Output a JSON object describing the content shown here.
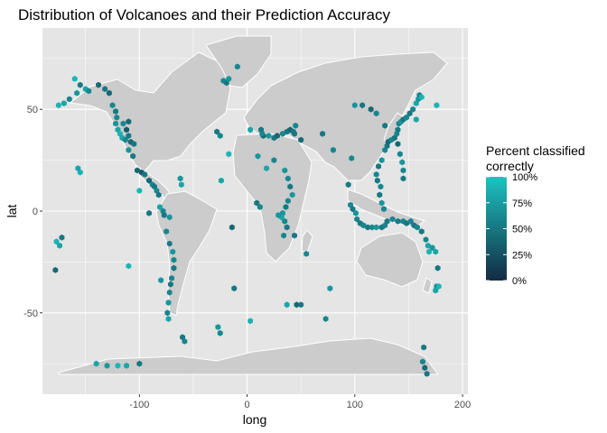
{
  "chart_data": {
    "type": "scatter",
    "title": "Distribution of Volcanoes and their Prediction Accuracy",
    "xlabel": "long",
    "ylabel": "lat",
    "xlim": [
      -190,
      205
    ],
    "ylim": [
      -90,
      90
    ],
    "x_ticks": [
      -100,
      0,
      100,
      200
    ],
    "y_ticks": [
      -50,
      0,
      50
    ],
    "x_tick_labels": [
      "-100",
      "0",
      "100",
      "200"
    ],
    "y_tick_labels": [
      "-50",
      "0",
      "50"
    ],
    "grid": true,
    "background_color": "#e5e5e5",
    "land_color": "#cccccc",
    "border_color": "#ffffff",
    "legend": {
      "title_lines": [
        "Percent classified",
        "correctly"
      ],
      "position": "right",
      "labels": [
        "100%",
        "75%",
        "50%",
        "25%",
        "0%"
      ],
      "values": [
        1.0,
        0.75,
        0.5,
        0.25,
        0.0
      ],
      "color_low": "#132b43",
      "color_high": "#1cc3c0"
    },
    "points": [
      {
        "x": -160,
        "y": 65,
        "v": 0.9
      },
      {
        "x": -155,
        "y": 62,
        "v": 0.5
      },
      {
        "x": -158,
        "y": 58,
        "v": 0.7
      },
      {
        "x": -165,
        "y": 55,
        "v": 0.6
      },
      {
        "x": -170,
        "y": 53,
        "v": 0.8
      },
      {
        "x": -175,
        "y": 52,
        "v": 0.9
      },
      {
        "x": -150,
        "y": 60,
        "v": 0.8
      },
      {
        "x": -147,
        "y": 59,
        "v": 0.6
      },
      {
        "x": -138,
        "y": 62,
        "v": 0.4
      },
      {
        "x": -132,
        "y": 60,
        "v": 0.5
      },
      {
        "x": -128,
        "y": 58,
        "v": 0.4
      },
      {
        "x": -125,
        "y": 52,
        "v": 0.6
      },
      {
        "x": -122,
        "y": 49,
        "v": 0.5
      },
      {
        "x": -121,
        "y": 46,
        "v": 0.6
      },
      {
        "x": -122,
        "y": 43,
        "v": 0.7
      },
      {
        "x": -120,
        "y": 40,
        "v": 0.8
      },
      {
        "x": -118,
        "y": 38,
        "v": 0.9
      },
      {
        "x": -116,
        "y": 36,
        "v": 0.8
      },
      {
        "x": -113,
        "y": 35,
        "v": 0.6
      },
      {
        "x": -110,
        "y": 37,
        "v": 0.5
      },
      {
        "x": -108,
        "y": 34,
        "v": 0.4
      },
      {
        "x": -112,
        "y": 40,
        "v": 0.3
      },
      {
        "x": -110,
        "y": 44,
        "v": 0.4
      },
      {
        "x": -115,
        "y": 43,
        "v": 0.6
      },
      {
        "x": -105,
        "y": 33,
        "v": 0.5
      },
      {
        "x": -110,
        "y": 30,
        "v": 0.7
      },
      {
        "x": -106,
        "y": 27,
        "v": 0.5
      },
      {
        "x": -102,
        "y": 20,
        "v": 0.4
      },
      {
        "x": -98,
        "y": 19,
        "v": 0.3
      },
      {
        "x": -95,
        "y": 18,
        "v": 0.5
      },
      {
        "x": -91,
        "y": 15,
        "v": 0.4
      },
      {
        "x": -88,
        "y": 13,
        "v": 0.6
      },
      {
        "x": -86,
        "y": 12,
        "v": 0.5
      },
      {
        "x": -84,
        "y": 10,
        "v": 0.6
      },
      {
        "x": -82,
        "y": 8,
        "v": 0.5
      },
      {
        "x": -100,
        "y": 10,
        "v": 0.9
      },
      {
        "x": -62,
        "y": 16,
        "v": 0.7
      },
      {
        "x": -61,
        "y": 13,
        "v": 0.8
      },
      {
        "x": -155,
        "y": 19,
        "v": 0.9
      },
      {
        "x": -157,
        "y": 21,
        "v": 0.8
      },
      {
        "x": -78,
        "y": 0,
        "v": 0.6
      },
      {
        "x": -77,
        "y": -2,
        "v": 0.5
      },
      {
        "x": -75,
        "y": -10,
        "v": 0.6
      },
      {
        "x": -72,
        "y": -16,
        "v": 0.5
      },
      {
        "x": -69,
        "y": -20,
        "v": 0.7
      },
      {
        "x": -68,
        "y": -24,
        "v": 0.6
      },
      {
        "x": -68,
        "y": -28,
        "v": 0.5
      },
      {
        "x": -70,
        "y": -33,
        "v": 0.6
      },
      {
        "x": -71,
        "y": -36,
        "v": 0.5
      },
      {
        "x": -72,
        "y": -40,
        "v": 0.6
      },
      {
        "x": -73,
        "y": -45,
        "v": 0.7
      },
      {
        "x": -74,
        "y": -50,
        "v": 0.6
      },
      {
        "x": -73,
        "y": -53,
        "v": 0.8
      },
      {
        "x": -80,
        "y": -34,
        "v": 0.7
      },
      {
        "x": -91,
        "y": -1,
        "v": 0.5
      },
      {
        "x": -72,
        "y": -3,
        "v": 0.7
      },
      {
        "x": -81,
        "y": 2,
        "v": 0.8
      },
      {
        "x": -60,
        "y": -62,
        "v": 0.5
      },
      {
        "x": -58,
        "y": -64,
        "v": 0.6
      },
      {
        "x": -27,
        "y": -57,
        "v": 0.7
      },
      {
        "x": -25,
        "y": -60,
        "v": 0.6
      },
      {
        "x": -12,
        "y": -38,
        "v": 0.5
      },
      {
        "x": -22,
        "y": 64,
        "v": 0.6
      },
      {
        "x": -19,
        "y": 63,
        "v": 0.5
      },
      {
        "x": -17,
        "y": 65,
        "v": 0.7
      },
      {
        "x": -9,
        "y": 71,
        "v": 0.6
      },
      {
        "x": -28,
        "y": 39,
        "v": 0.5
      },
      {
        "x": -25,
        "y": 37,
        "v": 0.6
      },
      {
        "x": -17,
        "y": 28,
        "v": 0.9
      },
      {
        "x": -24,
        "y": 15,
        "v": 0.8
      },
      {
        "x": -14,
        "y": -8,
        "v": 0.4
      },
      {
        "x": 3,
        "y": 40,
        "v": 0.8
      },
      {
        "x": 13,
        "y": 40,
        "v": 0.5
      },
      {
        "x": 15,
        "y": 37,
        "v": 0.4
      },
      {
        "x": 14,
        "y": 38,
        "v": 0.6
      },
      {
        "x": 20,
        "y": 37,
        "v": 0.7
      },
      {
        "x": 25,
        "y": 36,
        "v": 0.5
      },
      {
        "x": 28,
        "y": 37,
        "v": 0.4
      },
      {
        "x": 33,
        "y": 38,
        "v": 0.6
      },
      {
        "x": 37,
        "y": 39,
        "v": 0.5
      },
      {
        "x": 40,
        "y": 40,
        "v": 0.4
      },
      {
        "x": 43,
        "y": 39,
        "v": 0.5
      },
      {
        "x": 45,
        "y": 42,
        "v": 0.6
      },
      {
        "x": 44,
        "y": 38,
        "v": 0.5
      },
      {
        "x": 50,
        "y": 35,
        "v": 0.4
      },
      {
        "x": 10,
        "y": 27,
        "v": 0.7
      },
      {
        "x": 18,
        "y": 21,
        "v": 0.8
      },
      {
        "x": 25,
        "y": 25,
        "v": 0.6
      },
      {
        "x": 35,
        "y": 20,
        "v": 0.7
      },
      {
        "x": 38,
        "y": 16,
        "v": 0.6
      },
      {
        "x": 40,
        "y": 12,
        "v": 0.5
      },
      {
        "x": 42,
        "y": 8,
        "v": 0.7
      },
      {
        "x": 38,
        "y": 5,
        "v": 0.6
      },
      {
        "x": 36,
        "y": 2,
        "v": 0.5
      },
      {
        "x": 33,
        "y": -1,
        "v": 0.7
      },
      {
        "x": 35,
        "y": -5,
        "v": 0.6
      },
      {
        "x": 37,
        "y": -8,
        "v": 0.5
      },
      {
        "x": 32,
        "y": -3,
        "v": 0.8
      },
      {
        "x": 29,
        "y": -2,
        "v": 0.7
      },
      {
        "x": 34,
        "y": -12,
        "v": 0.6
      },
      {
        "x": 9,
        "y": 4,
        "v": 0.5
      },
      {
        "x": 12,
        "y": 2,
        "v": 0.6
      },
      {
        "x": 44,
        "y": -12,
        "v": 0.5
      },
      {
        "x": 55,
        "y": -21,
        "v": 0.6
      },
      {
        "x": 37,
        "y": -46,
        "v": 0.8
      },
      {
        "x": 46,
        "y": -46,
        "v": 0.4
      },
      {
        "x": 50,
        "y": -46,
        "v": 0.5
      },
      {
        "x": 73,
        "y": -53,
        "v": 0.6
      },
      {
        "x": 77,
        "y": -38,
        "v": 0.7
      },
      {
        "x": 3,
        "y": -54,
        "v": 0.9
      },
      {
        "x": 70,
        "y": 38,
        "v": 0.5
      },
      {
        "x": 80,
        "y": 30,
        "v": 0.6
      },
      {
        "x": 100,
        "y": 52,
        "v": 0.7
      },
      {
        "x": 107,
        "y": 52,
        "v": 0.5
      },
      {
        "x": 115,
        "y": 50,
        "v": 0.4
      },
      {
        "x": 120,
        "y": 48,
        "v": 0.6
      },
      {
        "x": 97,
        "y": 26,
        "v": 0.6
      },
      {
        "x": 94,
        "y": 13,
        "v": 0.5
      },
      {
        "x": 96,
        "y": 3,
        "v": 0.6
      },
      {
        "x": 98,
        "y": 1,
        "v": 0.5
      },
      {
        "x": 101,
        "y": -1,
        "v": 0.7
      },
      {
        "x": 102,
        "y": -4,
        "v": 0.6
      },
      {
        "x": 105,
        "y": -6,
        "v": 0.5
      },
      {
        "x": 108,
        "y": -7,
        "v": 0.6
      },
      {
        "x": 112,
        "y": -8,
        "v": 0.5
      },
      {
        "x": 116,
        "y": -8,
        "v": 0.6
      },
      {
        "x": 120,
        "y": -8,
        "v": 0.7
      },
      {
        "x": 125,
        "y": -8,
        "v": 0.5
      },
      {
        "x": 128,
        "y": -7,
        "v": 0.6
      },
      {
        "x": 130,
        "y": -5,
        "v": 0.5
      },
      {
        "x": 127,
        "y": 1,
        "v": 0.6
      },
      {
        "x": 125,
        "y": 4,
        "v": 0.7
      },
      {
        "x": 123,
        "y": 8,
        "v": 0.5
      },
      {
        "x": 124,
        "y": 12,
        "v": 0.6
      },
      {
        "x": 121,
        "y": 15,
        "v": 0.5
      },
      {
        "x": 120,
        "y": 18,
        "v": 0.6
      },
      {
        "x": 122,
        "y": 22,
        "v": 0.5
      },
      {
        "x": 125,
        "y": 25,
        "v": 0.7
      },
      {
        "x": 128,
        "y": 30,
        "v": 0.6
      },
      {
        "x": 130,
        "y": 32,
        "v": 0.5
      },
      {
        "x": 131,
        "y": 34,
        "v": 0.4
      },
      {
        "x": 134,
        "y": 35,
        "v": 0.6
      },
      {
        "x": 137,
        "y": 36,
        "v": 0.5
      },
      {
        "x": 139,
        "y": 38,
        "v": 0.6
      },
      {
        "x": 140,
        "y": 40,
        "v": 0.5
      },
      {
        "x": 141,
        "y": 43,
        "v": 0.6
      },
      {
        "x": 143,
        "y": 44,
        "v": 0.7
      },
      {
        "x": 145,
        "y": 45,
        "v": 0.5
      },
      {
        "x": 148,
        "y": 46,
        "v": 0.6
      },
      {
        "x": 151,
        "y": 48,
        "v": 0.5
      },
      {
        "x": 154,
        "y": 50,
        "v": 0.6
      },
      {
        "x": 157,
        "y": 53,
        "v": 0.8
      },
      {
        "x": 159,
        "y": 55,
        "v": 0.7
      },
      {
        "x": 160,
        "y": 57,
        "v": 0.6
      },
      {
        "x": 162,
        "y": 56,
        "v": 0.9
      },
      {
        "x": 128,
        "y": 42,
        "v": 0.5
      },
      {
        "x": 140,
        "y": 33,
        "v": 0.4
      },
      {
        "x": 142,
        "y": 28,
        "v": 0.6
      },
      {
        "x": 144,
        "y": 24,
        "v": 0.7
      },
      {
        "x": 145,
        "y": 20,
        "v": 0.6
      },
      {
        "x": 145,
        "y": 16,
        "v": 0.5
      },
      {
        "x": 135,
        "y": -4,
        "v": 0.6
      },
      {
        "x": 140,
        "y": -5,
        "v": 0.5
      },
      {
        "x": 145,
        "y": -5,
        "v": 0.6
      },
      {
        "x": 148,
        "y": -6,
        "v": 0.5
      },
      {
        "x": 152,
        "y": -5,
        "v": 0.6
      },
      {
        "x": 155,
        "y": -7,
        "v": 0.5
      },
      {
        "x": 158,
        "y": -8,
        "v": 0.6
      },
      {
        "x": 162,
        "y": -10,
        "v": 0.5
      },
      {
        "x": 166,
        "y": -14,
        "v": 0.6
      },
      {
        "x": 168,
        "y": -17,
        "v": 0.8
      },
      {
        "x": 169,
        "y": -20,
        "v": 0.9
      },
      {
        "x": 172,
        "y": -18,
        "v": 0.7
      },
      {
        "x": 175,
        "y": -20,
        "v": 0.8
      },
      {
        "x": 176,
        "y": -37,
        "v": 0.6
      },
      {
        "x": 175,
        "y": -39,
        "v": 0.8
      },
      {
        "x": 178,
        "y": -37,
        "v": 0.9
      },
      {
        "x": 177,
        "y": -28,
        "v": 0.5
      },
      {
        "x": 176,
        "y": 52,
        "v": 0.9
      },
      {
        "x": 157,
        "y": 45,
        "v": 0.8
      },
      {
        "x": -177,
        "y": -15,
        "v": 0.9
      },
      {
        "x": -174,
        "y": -17,
        "v": 0.8
      },
      {
        "x": -172,
        "y": -13,
        "v": 0.5
      },
      {
        "x": -178,
        "y": -29,
        "v": 0.4
      },
      {
        "x": -140,
        "y": -75,
        "v": 0.8
      },
      {
        "x": -130,
        "y": -76,
        "v": 0.7
      },
      {
        "x": -120,
        "y": -76,
        "v": 0.9
      },
      {
        "x": -112,
        "y": -76,
        "v": 0.8
      },
      {
        "x": -100,
        "y": -75,
        "v": 0.5
      },
      {
        "x": -110,
        "y": -27,
        "v": 0.9
      },
      {
        "x": 165,
        "y": -77,
        "v": 0.4
      },
      {
        "x": 167,
        "y": -80,
        "v": 0.5
      },
      {
        "x": 163,
        "y": -74,
        "v": 0.6
      },
      {
        "x": 164,
        "y": -67,
        "v": 0.5
      }
    ]
  }
}
